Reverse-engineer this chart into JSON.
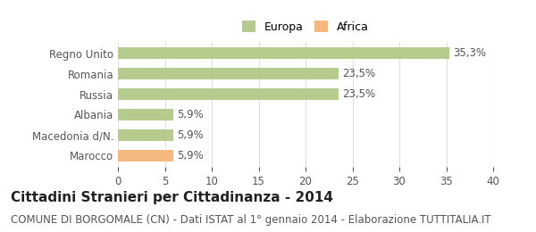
{
  "categories": [
    "Marocco",
    "Macedonia d/N.",
    "Albania",
    "Russia",
    "Romania",
    "Regno Unito"
  ],
  "values": [
    5.9,
    5.9,
    5.9,
    23.5,
    23.5,
    35.3
  ],
  "labels": [
    "5,9%",
    "5,9%",
    "5,9%",
    "23,5%",
    "23,5%",
    "35,3%"
  ],
  "colors": [
    "#f5b97f",
    "#b5cc8e",
    "#b5cc8e",
    "#b5cc8e",
    "#b5cc8e",
    "#b5cc8e"
  ],
  "legend_items": [
    {
      "label": "Europa",
      "color": "#b5cc8e"
    },
    {
      "label": "Africa",
      "color": "#f5b97f"
    }
  ],
  "xlim": [
    0,
    40
  ],
  "xticks": [
    0,
    5,
    10,
    15,
    20,
    25,
    30,
    35,
    40
  ],
  "title": "Cittadini Stranieri per Cittadinanza - 2014",
  "subtitle": "COMUNE DI BORGOMALE (CN) - Dati ISTAT al 1° gennaio 2014 - Elaborazione TUTTITALIA.IT",
  "background_color": "#ffffff",
  "bar_edge_color": "none",
  "label_fontsize": 8.5,
  "title_fontsize": 11,
  "subtitle_fontsize": 8.5,
  "grid_color": "#e0e0e0",
  "label_color": "#555555",
  "tick_color": "#555555"
}
